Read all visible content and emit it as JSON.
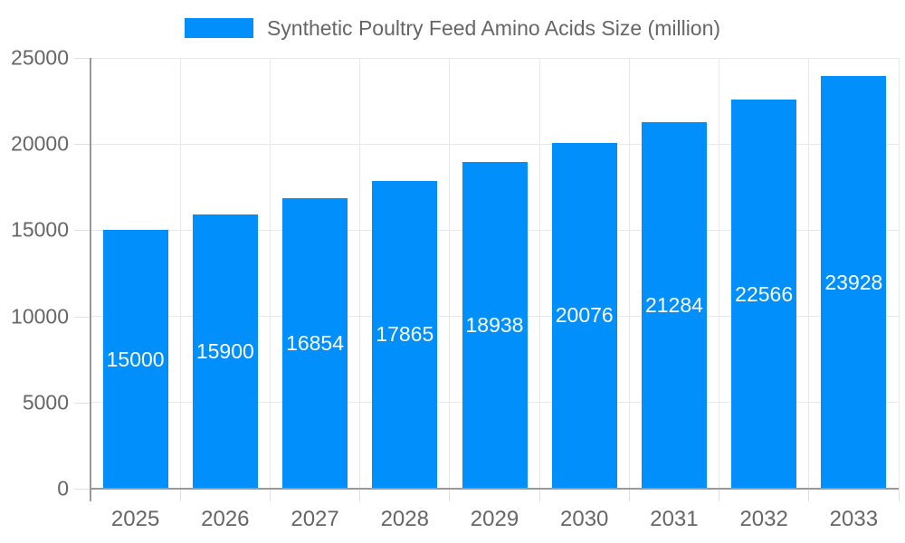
{
  "chart_data": {
    "type": "bar",
    "title": "Synthetic Poultry Feed Amino Acids Size (million)",
    "categories": [
      "2025",
      "2026",
      "2027",
      "2028",
      "2029",
      "2030",
      "2031",
      "2032",
      "2033"
    ],
    "values": [
      15000,
      15900,
      16854,
      17865,
      18938,
      20076,
      21284,
      22566,
      23928
    ],
    "series": [
      {
        "name": "Synthetic Poultry Feed Amino Acids Size (million)",
        "values": [
          15000,
          15900,
          16854,
          17865,
          18938,
          20076,
          21284,
          22566,
          23928
        ]
      }
    ],
    "xlabel": "",
    "ylabel": "",
    "ylim": [
      0,
      25000
    ],
    "yticks": [
      0,
      5000,
      10000,
      15000,
      20000,
      25000
    ],
    "grid": true,
    "legend_position": "top",
    "bar_labels_shown": true
  },
  "colors": {
    "bar": "#008FFB",
    "grid": "#e8e8e8",
    "tick": "#e0e0e0",
    "axis": "#999999",
    "text": "#666666",
    "bar_label": "#ffffff",
    "background": "#ffffff"
  }
}
